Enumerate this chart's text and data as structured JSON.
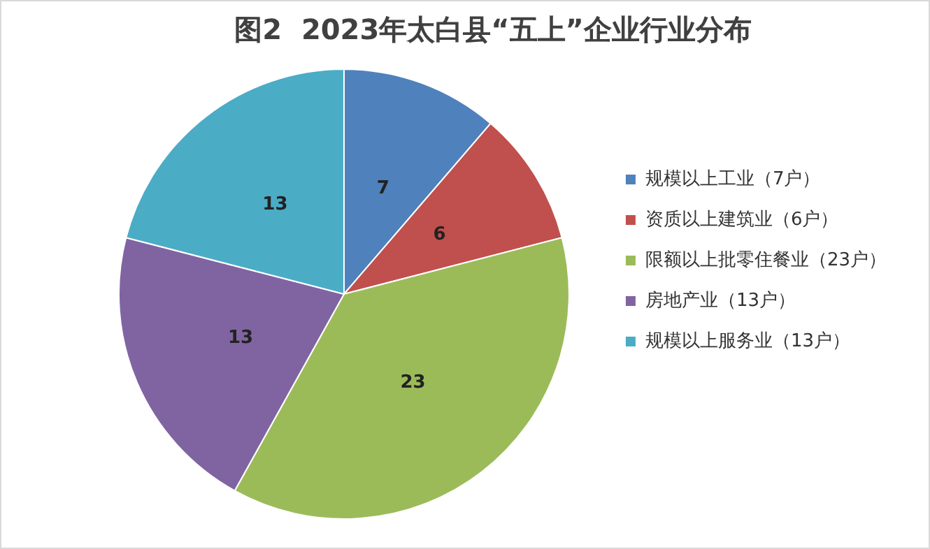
{
  "chart_data": {
    "type": "pie",
    "title": "图2  2023年太白县“五上”企业行业分布",
    "categories": [
      "规模以上工业（7户）",
      "资质以上建筑业（6户）",
      "限额以上批零住餐业（23户）",
      "房地产业（13户）",
      "规模以上服务业（13户）"
    ],
    "values": [
      7,
      6,
      23,
      13,
      13
    ],
    "colors": [
      "#4f81bd",
      "#c0504d",
      "#9bbb59",
      "#8064a2",
      "#4bacc6"
    ],
    "data_labels": true,
    "legend": "right"
  }
}
